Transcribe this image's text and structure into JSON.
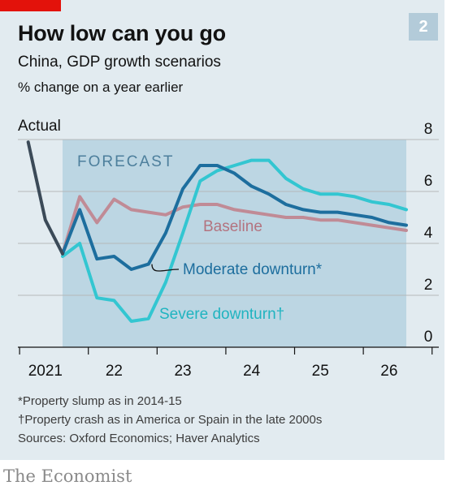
{
  "header": {
    "badge": "2",
    "title": "How low can you go",
    "subtitle": "China, GDP growth scenarios",
    "units": "% change on a year earlier"
  },
  "chart_data": {
    "type": "line",
    "xlim": [
      2020.85,
      2026.5
    ],
    "ylim": [
      0,
      8
    ],
    "yticks": [
      "0",
      "2",
      "4",
      "6",
      "8"
    ],
    "xticks": [
      "2021",
      "22",
      "23",
      "24",
      "25",
      "26"
    ],
    "forecast_band": {
      "label": "FORECAST",
      "x_start": 2021.5,
      "x_end": 2026.5
    },
    "series": [
      {
        "name": "Actual",
        "color": "#3b4a58",
        "x": [
          2021.0,
          2021.25,
          2021.5
        ],
        "y": [
          7.9,
          4.9,
          3.6
        ]
      },
      {
        "name": "Baseline",
        "color": "#c08b96",
        "x": [
          2021.5,
          2021.75,
          2022.0,
          2022.25,
          2022.5,
          2022.75,
          2023.0,
          2023.25,
          2023.5,
          2023.75,
          2024.0,
          2024.25,
          2024.5,
          2024.75,
          2025.0,
          2025.25,
          2025.5,
          2025.75,
          2026.0,
          2026.25,
          2026.5
        ],
        "y": [
          3.6,
          5.8,
          4.8,
          5.7,
          5.3,
          5.2,
          5.1,
          5.4,
          5.5,
          5.5,
          5.3,
          5.2,
          5.1,
          5.0,
          5.0,
          4.9,
          4.9,
          4.8,
          4.7,
          4.6,
          4.5
        ]
      },
      {
        "name": "Moderate downturn*",
        "color": "#1d6e9e",
        "x": [
          2021.5,
          2021.75,
          2022.0,
          2022.25,
          2022.5,
          2022.75,
          2023.0,
          2023.25,
          2023.5,
          2023.75,
          2024.0,
          2024.25,
          2024.5,
          2024.75,
          2025.0,
          2025.25,
          2025.5,
          2025.75,
          2026.0,
          2026.25,
          2026.5
        ],
        "y": [
          3.6,
          5.3,
          3.4,
          3.5,
          3.0,
          3.2,
          4.4,
          6.1,
          7.0,
          7.0,
          6.7,
          6.2,
          5.9,
          5.5,
          5.3,
          5.2,
          5.2,
          5.1,
          5.0,
          4.8,
          4.7
        ]
      },
      {
        "name": "Severe downturn†",
        "color": "#33c6d1",
        "x": [
          2021.5,
          2021.75,
          2022.0,
          2022.25,
          2022.5,
          2022.75,
          2023.0,
          2023.25,
          2023.5,
          2023.75,
          2024.0,
          2024.25,
          2024.5,
          2024.75,
          2025.0,
          2025.25,
          2025.5,
          2025.75,
          2026.0,
          2026.25,
          2026.5
        ],
        "y": [
          3.5,
          4.0,
          1.9,
          1.8,
          1.0,
          1.1,
          2.5,
          4.4,
          6.4,
          6.8,
          7.0,
          7.2,
          7.2,
          6.5,
          6.1,
          5.9,
          5.9,
          5.8,
          5.6,
          5.5,
          5.3
        ]
      }
    ]
  },
  "footnotes": {
    "moderate": "*Property slump as in 2014-15",
    "severe": "†Property crash as in America or Spain in the late 2000s",
    "sources": "Sources: Oxford Economics; Haver Analytics"
  },
  "brand": "The Economist"
}
